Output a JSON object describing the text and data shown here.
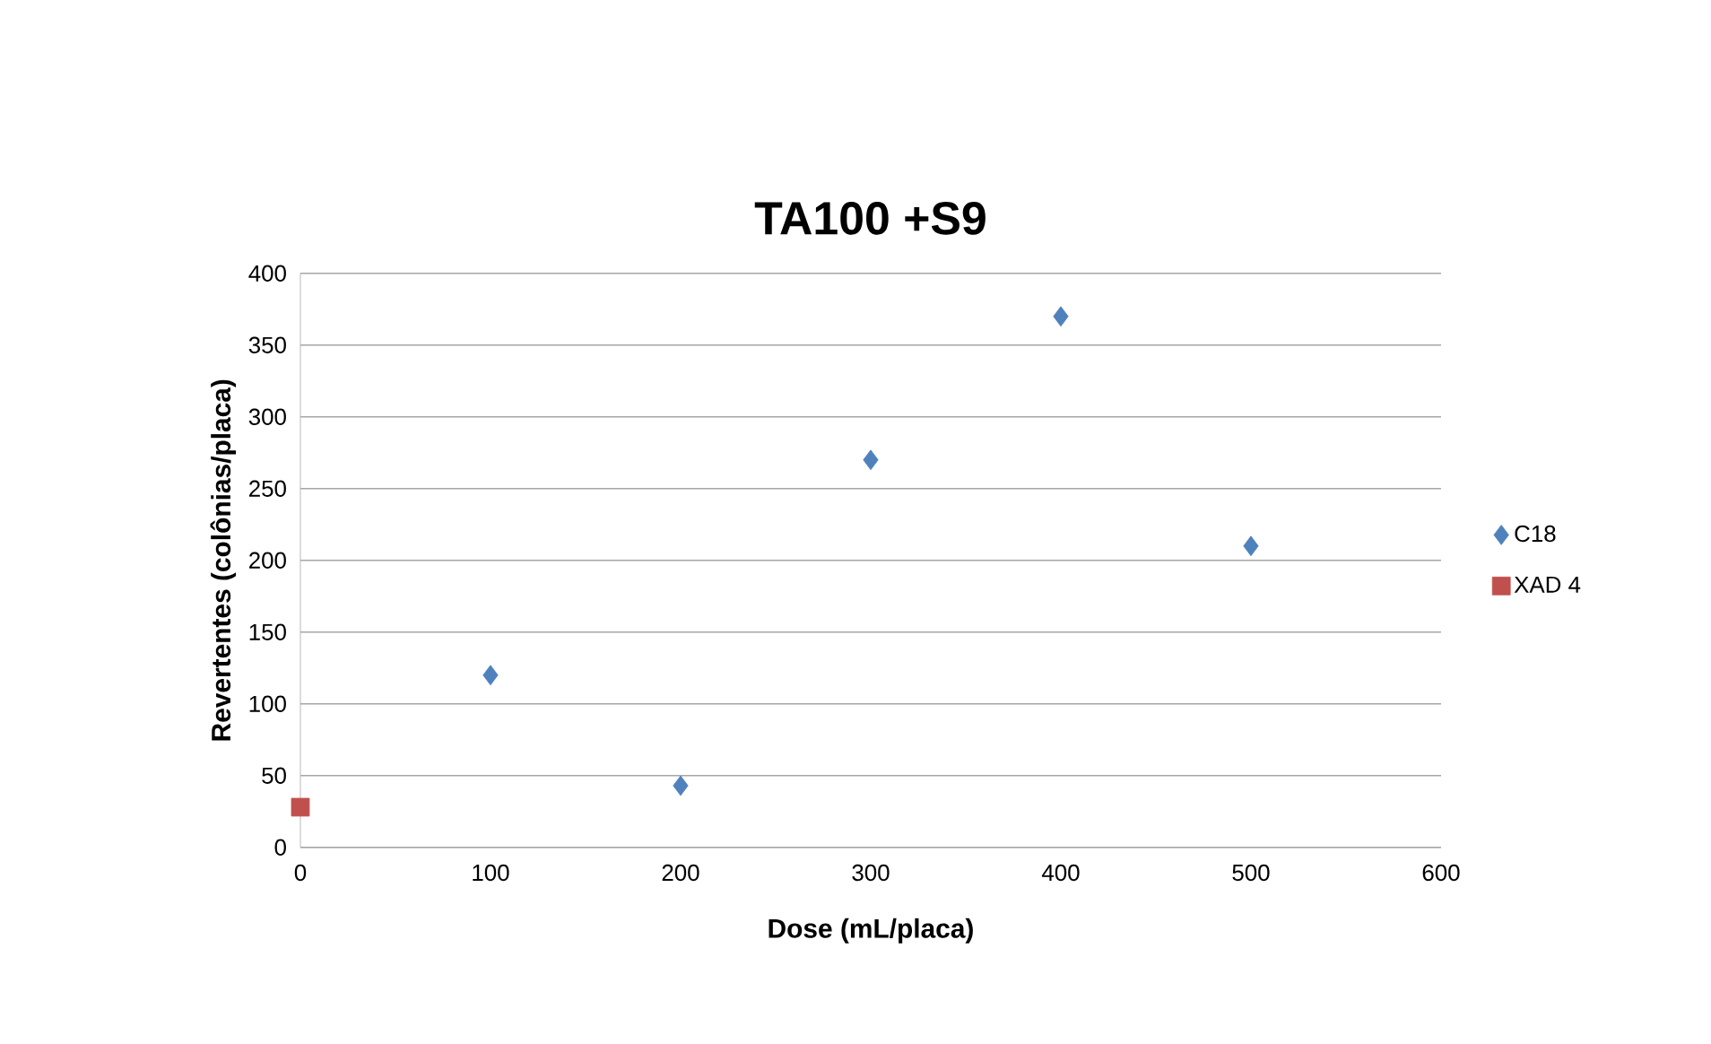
{
  "chart_data": {
    "type": "scatter",
    "title": "TA100 +S9",
    "xlabel": "Dose (mL/placa)",
    "ylabel": "Revertentes (colônias/placa)",
    "series": [
      {
        "name": "C18",
        "color": "#4f81bd",
        "marker": "diamond",
        "x": [
          100,
          200,
          300,
          400,
          500
        ],
        "values": [
          120,
          43,
          270,
          370,
          210
        ]
      },
      {
        "name": "XAD 4",
        "color": "#c0504d",
        "marker": "square",
        "x": [
          0
        ],
        "values": [
          28
        ]
      }
    ],
    "xlim": [
      0,
      600
    ],
    "xticks": [
      0,
      100,
      200,
      300,
      400,
      500,
      600
    ],
    "ylim": [
      0,
      400
    ],
    "yticks": [
      0,
      50,
      100,
      150,
      200,
      250,
      300,
      350,
      400
    ],
    "grid": "y",
    "legend": "right"
  }
}
